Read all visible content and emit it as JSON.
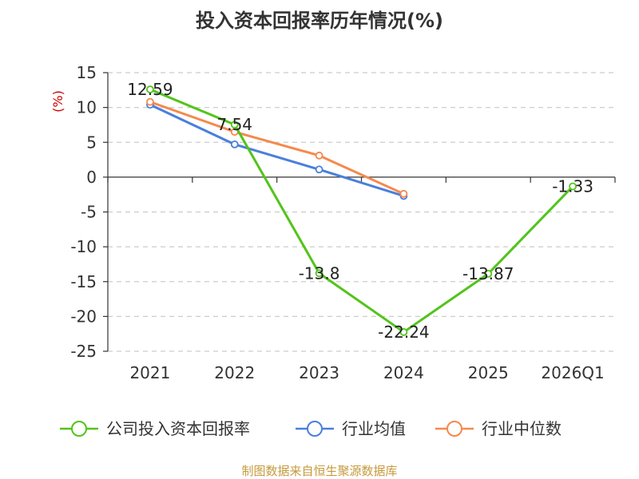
{
  "chart_data": {
    "type": "line",
    "title": "投入资本回报率历年情况(%)",
    "ylabel": "(%)",
    "xlabel": "",
    "categories": [
      "2021",
      "2022",
      "2023",
      "2024",
      "2025",
      "2026Q1"
    ],
    "ylim": [
      -25,
      15
    ],
    "yticks": [
      15,
      10,
      5,
      0,
      -5,
      -10,
      -15,
      -20,
      -25
    ],
    "grid": true,
    "legend_position": "bottom",
    "series": [
      {
        "name": "公司投入资本回报率",
        "color": "#52c41a",
        "values": [
          12.59,
          7.54,
          -13.8,
          -22.24,
          -13.87,
          -1.33
        ],
        "labels": [
          "12.59",
          "7.54",
          "-13.8",
          "-22.24",
          "-13.87",
          "-1.33"
        ]
      },
      {
        "name": "行业均值",
        "color": "#4a7fdc",
        "values": [
          10.4,
          4.7,
          1.1,
          -2.7,
          null,
          null
        ]
      },
      {
        "name": "行业中位数",
        "color": "#f5894d",
        "values": [
          10.8,
          6.5,
          3.1,
          -2.4,
          null,
          null
        ]
      }
    ]
  },
  "source": "制图数据来自恒生聚源数据库"
}
